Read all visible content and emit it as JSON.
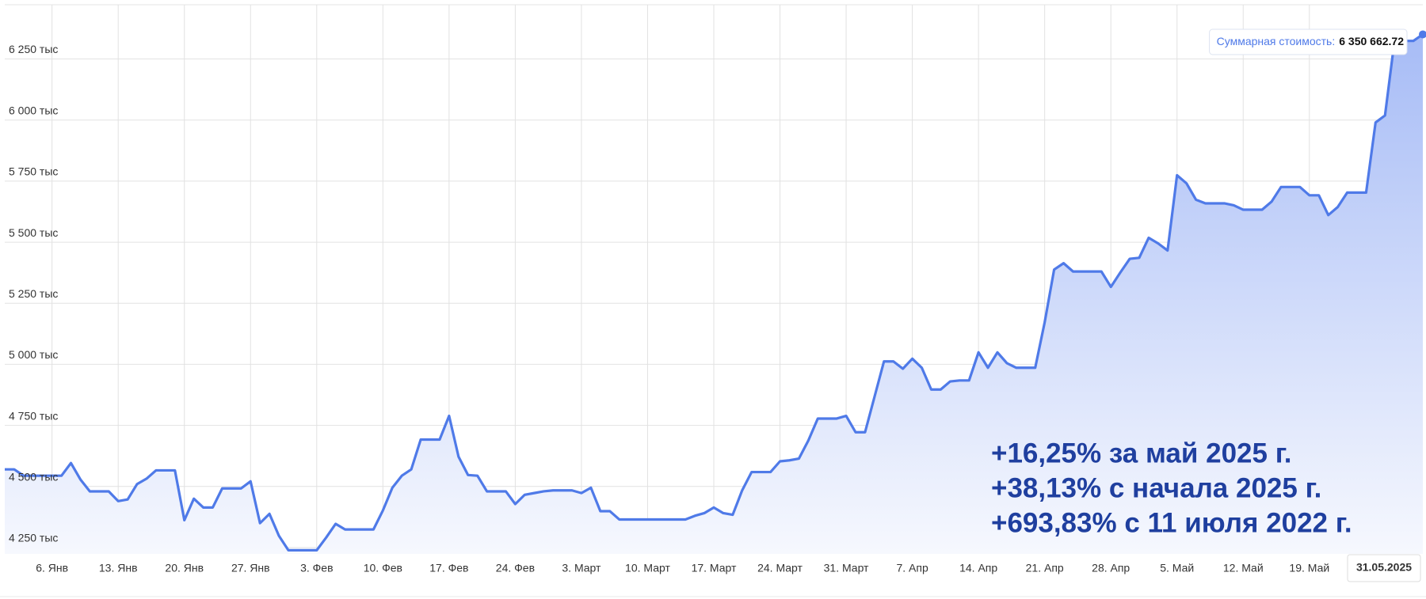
{
  "chart_data": {
    "type": "area",
    "color": "#4f7ae8",
    "grid": true,
    "ylim": [
      4224000,
      6472000
    ],
    "yticks": [
      {
        "value": 4250000,
        "label": "4 250 тыс"
      },
      {
        "value": 4500000,
        "label": "4 500 тыс"
      },
      {
        "value": 4750000,
        "label": "4 750 тыс"
      },
      {
        "value": 5000000,
        "label": "5 000 тыс"
      },
      {
        "value": 5250000,
        "label": "5 250 тыс"
      },
      {
        "value": 5500000,
        "label": "5 500 тыс"
      },
      {
        "value": 5750000,
        "label": "5 750 тыс"
      },
      {
        "value": 6000000,
        "label": "6 000 тыс"
      },
      {
        "value": 6250000,
        "label": "6 250 тыс"
      }
    ],
    "categories": [
      null,
      null,
      null,
      null,
      null,
      "6. Янв",
      null,
      null,
      null,
      null,
      null,
      null,
      "13. Янв",
      null,
      null,
      null,
      null,
      null,
      null,
      "20. Янв",
      null,
      null,
      null,
      null,
      null,
      null,
      "27. Янв",
      null,
      null,
      null,
      null,
      null,
      null,
      "3. Фев",
      null,
      null,
      null,
      null,
      null,
      null,
      "10. Фев",
      null,
      null,
      null,
      null,
      null,
      null,
      "17. Фев",
      null,
      null,
      null,
      null,
      null,
      null,
      "24. Фев",
      null,
      null,
      null,
      null,
      null,
      null,
      "3. Март",
      null,
      null,
      null,
      null,
      null,
      null,
      "10. Март",
      null,
      null,
      null,
      null,
      null,
      null,
      "17. Март",
      null,
      null,
      null,
      null,
      null,
      null,
      "24. Март",
      null,
      null,
      null,
      null,
      null,
      null,
      "31. Март",
      null,
      null,
      null,
      null,
      null,
      null,
      "7. Апр",
      null,
      null,
      null,
      null,
      null,
      null,
      "14. Апр",
      null,
      null,
      null,
      null,
      null,
      null,
      "21. Апр",
      null,
      null,
      null,
      null,
      null,
      null,
      "28. Апр",
      null,
      null,
      null,
      null,
      null,
      null,
      "5. Май",
      null,
      null,
      null,
      null,
      null,
      null,
      "12. Май",
      null,
      null,
      null,
      null,
      null,
      null,
      "19. Май",
      null,
      null,
      null,
      null,
      null,
      null,
      null,
      null,
      null,
      null,
      null,
      "31.05.2025"
    ],
    "values": [
      4570000,
      4570000,
      4544000,
      4544000,
      4544000,
      4544000,
      4544000,
      4596000,
      4529000,
      4480000,
      4480000,
      4480000,
      4440000,
      4447000,
      4510000,
      4532000,
      4566000,
      4566000,
      4566000,
      4362000,
      4450000,
      4414000,
      4414000,
      4492000,
      4492000,
      4492000,
      4521000,
      4350000,
      4388000,
      4298000,
      4239000,
      4239000,
      4239000,
      4239000,
      4291000,
      4347000,
      4324000,
      4324000,
      4324000,
      4324000,
      4402000,
      4495000,
      4544000,
      4570000,
      4692000,
      4692000,
      4692000,
      4789000,
      4622000,
      4547000,
      4544000,
      4480000,
      4480000,
      4480000,
      4428000,
      4466000,
      4473000,
      4480000,
      4484000,
      4484000,
      4484000,
      4473000,
      4495000,
      4399000,
      4399000,
      4365000,
      4365000,
      4365000,
      4365000,
      4365000,
      4365000,
      4365000,
      4365000,
      4380000,
      4391000,
      4414000,
      4391000,
      4384000,
      4484000,
      4559000,
      4559000,
      4559000,
      4603000,
      4607000,
      4614000,
      4688000,
      4778000,
      4778000,
      4778000,
      4789000,
      4722000,
      4722000,
      4867000,
      5012000,
      5012000,
      4982000,
      5023000,
      4986000,
      4897000,
      4897000,
      4930000,
      4934000,
      4934000,
      5049000,
      4986000,
      5049000,
      5005000,
      4986000,
      4986000,
      4986000,
      5172000,
      5388000,
      5414000,
      5380000,
      5380000,
      5380000,
      5380000,
      5317000,
      5376000,
      5432000,
      5436000,
      5518000,
      5495000,
      5466000,
      5774000,
      5741000,
      5674000,
      5659000,
      5659000,
      5659000,
      5651000,
      5633000,
      5633000,
      5633000,
      5666000,
      5726000,
      5726000,
      5726000,
      5692000,
      5692000,
      5611000,
      5644000,
      5703000,
      5703000,
      5703000,
      5990000,
      6019000,
      6324000,
      6324000,
      6324000,
      6350662.72
    ],
    "tooltip": {
      "label": "Суммарная стоимость:",
      "value_label": "6 350 662.72"
    },
    "annotations": [
      "+16,25% за май 2025 г.",
      "+38,13% с начала 2025 г.",
      "+693,83% с 11 июля 2022 г."
    ]
  }
}
